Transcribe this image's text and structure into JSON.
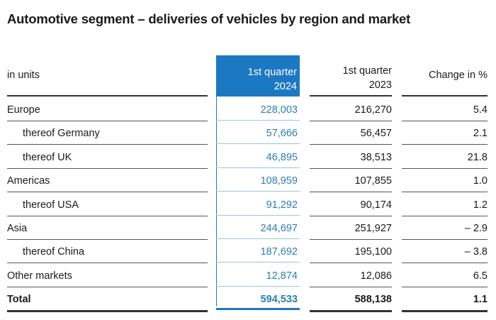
{
  "title": "Automotive segment – deliveries of vehicles by region and market",
  "header": {
    "unit": "in units",
    "col1": "1st quarter 2024",
    "col2": "1st quarter 2023",
    "col3": "Change in %"
  },
  "colors": {
    "accent": "#1b78c2",
    "highlight_text": "#2a7fb8"
  },
  "rows": [
    {
      "label": "Europe",
      "q1_2024": "228,003",
      "q1_2023": "216,270",
      "change": "5.4",
      "sub": false
    },
    {
      "label": "thereof Germany",
      "q1_2024": "57,666",
      "q1_2023": "56,457",
      "change": "2.1",
      "sub": true
    },
    {
      "label": "thereof UK",
      "q1_2024": "46,895",
      "q1_2023": "38,513",
      "change": "21.8",
      "sub": true
    },
    {
      "label": "Americas",
      "q1_2024": "108,959",
      "q1_2023": "107,855",
      "change": "1.0",
      "sub": false
    },
    {
      "label": "thereof USA",
      "q1_2024": "91,292",
      "q1_2023": "90,174",
      "change": "1.2",
      "sub": true
    },
    {
      "label": "Asia",
      "q1_2024": "244,697",
      "q1_2023": "251,927",
      "change": "– 2.9",
      "sub": false
    },
    {
      "label": "thereof China",
      "q1_2024": "187,692",
      "q1_2023": "195,100",
      "change": "– 3.8",
      "sub": true
    },
    {
      "label": "Other markets",
      "q1_2024": "12,874",
      "q1_2023": "12,086",
      "change": "6.5",
      "sub": false
    },
    {
      "label": "Total",
      "q1_2024": "594,533",
      "q1_2023": "588,138",
      "change": "1.1",
      "sub": false,
      "total": true
    }
  ]
}
